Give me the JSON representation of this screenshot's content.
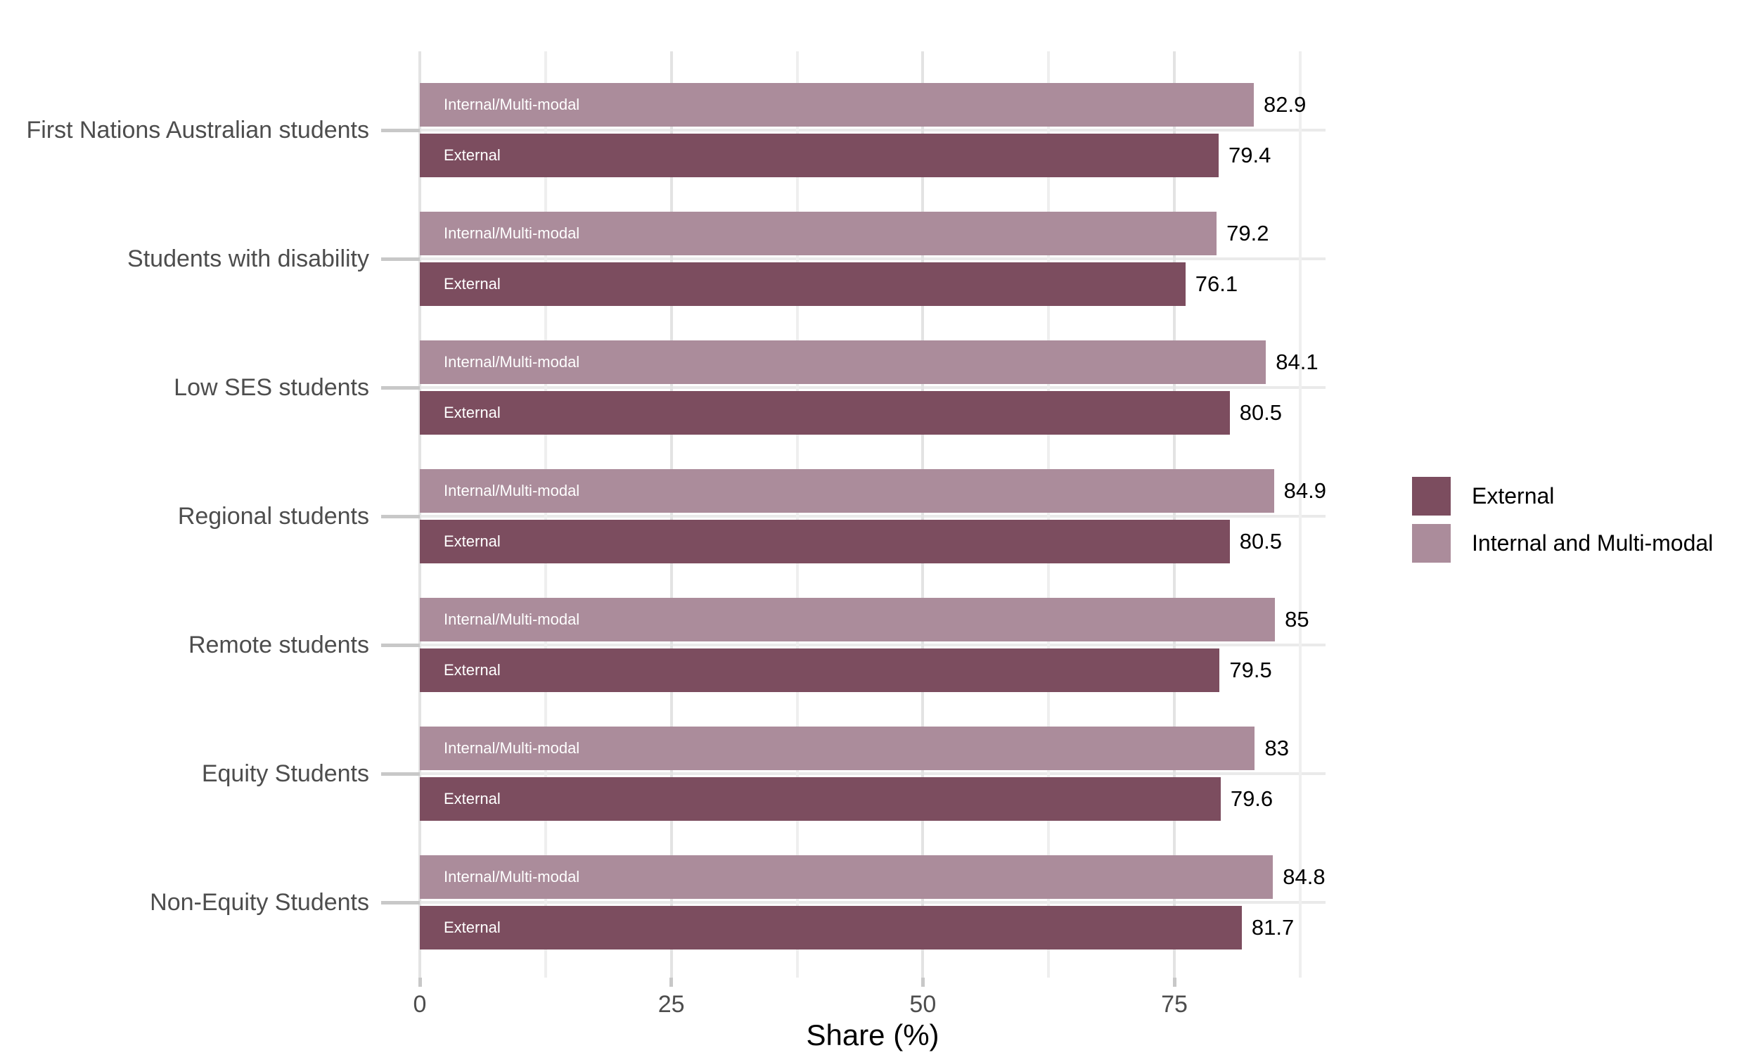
{
  "chart_data": {
    "type": "bar",
    "orientation": "horizontal",
    "title": "",
    "xlabel": "Share (%)",
    "ylabel": "",
    "categories": [
      "First Nations Australian students",
      "Students with disability",
      "Low SES students",
      "Regional students",
      "Remote students",
      "Equity Students",
      "Non-Equity Students"
    ],
    "series": [
      {
        "name": "External",
        "position": "bottom",
        "color": "#7C4D5F",
        "bar_label": "External",
        "values": [
          79.4,
          76.1,
          80.5,
          80.5,
          79.5,
          79.6,
          81.7
        ],
        "value_labels": [
          "79.4",
          "76.1",
          "80.5",
          "80.5",
          "79.5",
          "79.6",
          "81.7"
        ]
      },
      {
        "name": "Internal and Multi-modal",
        "position": "top",
        "color": "#AB8C9B",
        "bar_label": "Internal/Multi-modal",
        "values": [
          82.9,
          79.2,
          84.1,
          84.9,
          85,
          83,
          84.8
        ],
        "value_labels": [
          "82.9",
          "79.2",
          "84.1",
          "84.9",
          "85",
          "83",
          "84.8"
        ]
      }
    ],
    "x_axis": {
      "label": "Share (%)",
      "ticks": [
        0,
        25,
        50,
        75
      ],
      "minor_ticks": [
        12.5,
        37.5,
        62.5,
        87.5
      ],
      "range": [
        0,
        90
      ],
      "grid": true
    },
    "legend_items": [
      "External",
      "Internal and Multi-modal"
    ],
    "legend_position": "right",
    "colors": {
      "external": "#7C4D5F",
      "internal": "#AB8C9B",
      "grid_major": "#e3e3e3",
      "grid_minor": "#efefef",
      "grid_horizontal": "#eaeaea",
      "axis_tick": "#c8c8c8",
      "axis_text": "#4d4d4d",
      "value_text": "#000000",
      "bar_text": "#ffffff",
      "background": "#ffffff"
    }
  }
}
